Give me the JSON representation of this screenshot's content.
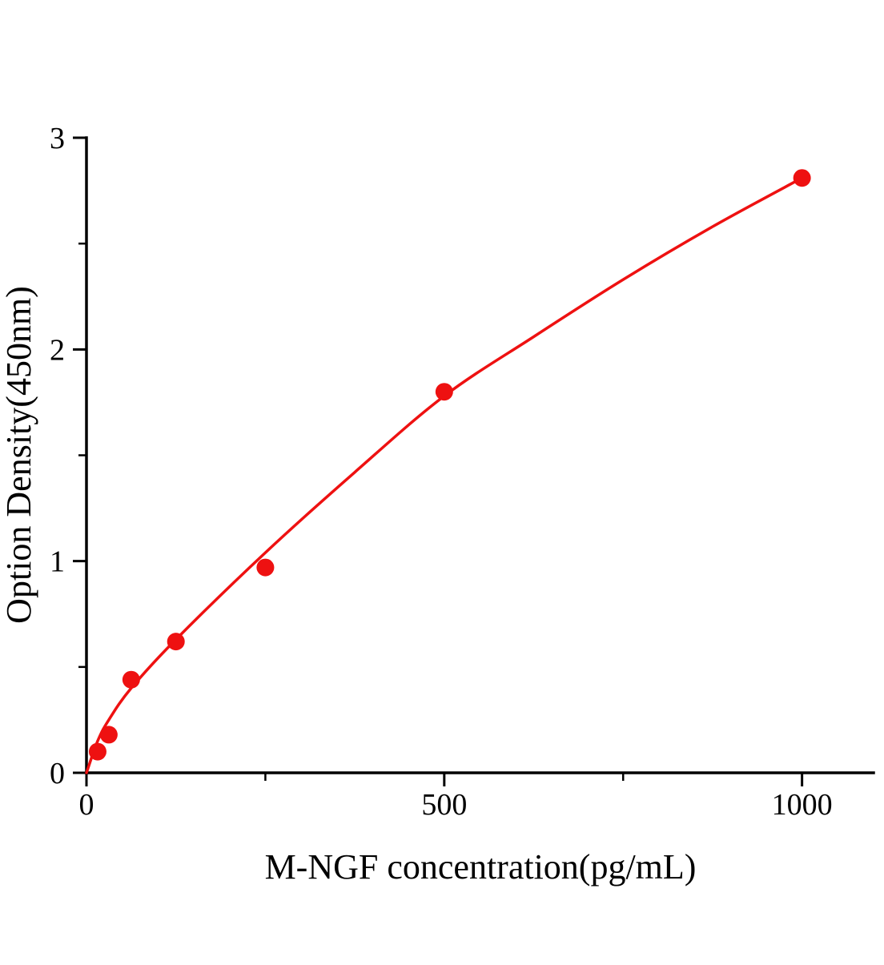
{
  "figure": {
    "background": "#ffffff"
  },
  "chart_data": {
    "type": "scatter",
    "title": "",
    "xlabel": "M-NGF concentration(pg/mL)",
    "ylabel": "Option Density(450nm)",
    "xlim": [
      0,
      1100
    ],
    "ylim": [
      0,
      3
    ],
    "x_major_ticks": [
      0,
      500,
      1000
    ],
    "x_minor_ticks": [
      250,
      750
    ],
    "y_major_ticks": [
      0,
      1,
      2,
      3
    ],
    "y_minor_ticks": [
      0.5,
      1.5,
      2.5
    ],
    "grid": false,
    "legend": false,
    "axis_color": "#000000",
    "accent_color": "#ee1111",
    "series": [
      {
        "name": "fit-curve",
        "type": "line",
        "color": "#ee1111",
        "stroke_width": 3.5,
        "points": [
          [
            0,
            0
          ],
          [
            15.6,
            0.15
          ],
          [
            31.2,
            0.25
          ],
          [
            62.5,
            0.4
          ],
          [
            125,
            0.63
          ],
          [
            250,
            1.04
          ],
          [
            375,
            1.42
          ],
          [
            500,
            1.78
          ],
          [
            625,
            2.06
          ],
          [
            750,
            2.33
          ],
          [
            875,
            2.58
          ],
          [
            1000,
            2.81
          ]
        ]
      },
      {
        "name": "standard-points",
        "type": "scatter",
        "color": "#ee1111",
        "marker_radius": 11,
        "points": [
          [
            15.6,
            0.1
          ],
          [
            31.2,
            0.18
          ],
          [
            62.5,
            0.44
          ],
          [
            125,
            0.62
          ],
          [
            250,
            0.97
          ],
          [
            500,
            1.8
          ],
          [
            1000,
            2.81
          ]
        ]
      }
    ]
  }
}
